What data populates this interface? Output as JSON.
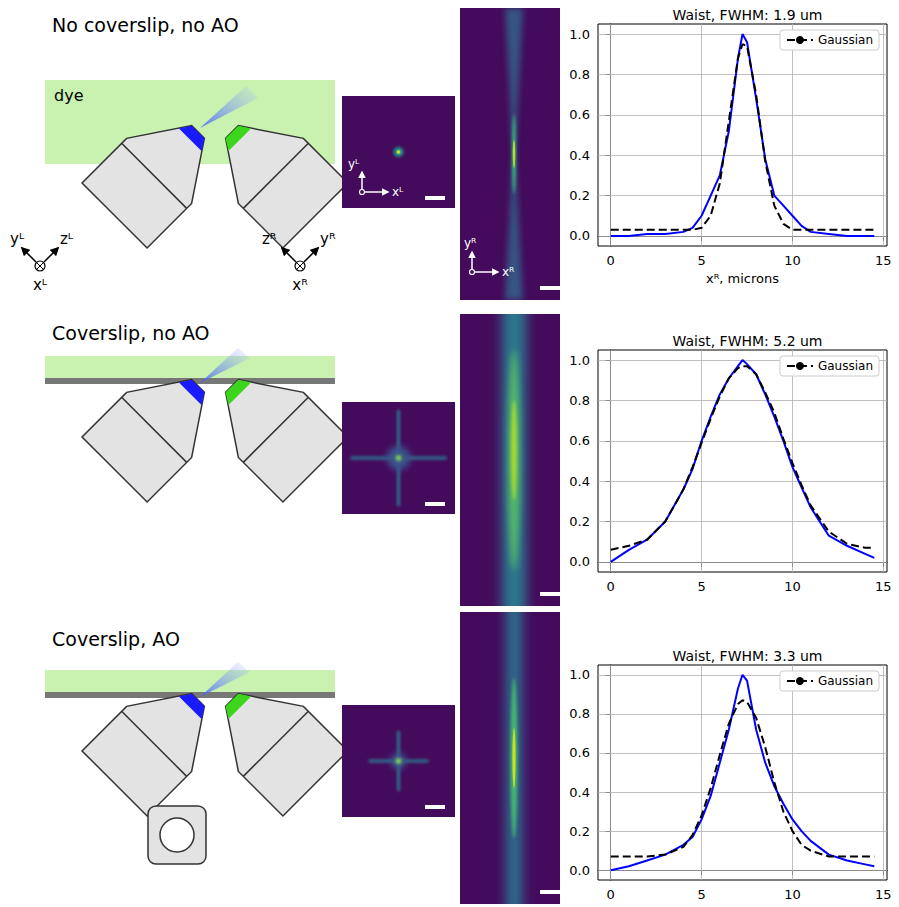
{
  "chart_data": [
    {
      "type": "line",
      "title": "Waist, FWHM: 1.9 um",
      "xlabel": "xᴿ, microns",
      "x": [
        0,
        1,
        2,
        3,
        4,
        4.5,
        5,
        5.5,
        6,
        6.5,
        7,
        7.25,
        7.5,
        8,
        8.5,
        9,
        9.5,
        10,
        10.5,
        11,
        12,
        13,
        14,
        14.5
      ],
      "series": [
        {
          "color": "#0000ff",
          "line_style": "solid",
          "values": [
            0.0,
            0.0,
            0.01,
            0.01,
            0.02,
            0.04,
            0.1,
            0.2,
            0.3,
            0.52,
            0.88,
            1.0,
            0.96,
            0.68,
            0.38,
            0.2,
            0.15,
            0.1,
            0.05,
            0.02,
            0.01,
            0.0,
            0.0,
            0.0
          ]
        },
        {
          "name": "Gaussian",
          "color": "#000000",
          "line_style": "dashed",
          "values": [
            0.03,
            0.03,
            0.03,
            0.03,
            0.03,
            0.03,
            0.04,
            0.1,
            0.26,
            0.57,
            0.88,
            0.95,
            0.94,
            0.7,
            0.37,
            0.15,
            0.06,
            0.03,
            0.03,
            0.03,
            0.03,
            0.03,
            0.03,
            0.03
          ]
        }
      ],
      "xlim": [
        -0.7,
        15.2
      ],
      "ylim": [
        -0.05,
        1.05
      ],
      "xticks": [
        0,
        5,
        10,
        15
      ],
      "yticks": [
        {
          "value": 0,
          "label": "0.0"
        },
        0.2,
        0.4,
        0.6,
        0.8,
        {
          "value": 1,
          "label": "1.0"
        }
      ],
      "grid": true,
      "legend": "upper right"
    },
    {
      "type": "line",
      "title": "Waist, FWHM: 5.2 um",
      "x": [
        0,
        1,
        2,
        3,
        4,
        4.5,
        5,
        5.5,
        6,
        6.5,
        7,
        7.25,
        7.5,
        8,
        8.5,
        9,
        9.5,
        10,
        10.5,
        11,
        12,
        13,
        14,
        14.5
      ],
      "series": [
        {
          "color": "#0000ff",
          "line_style": "solid",
          "values": [
            0.0,
            0.06,
            0.11,
            0.2,
            0.36,
            0.46,
            0.6,
            0.72,
            0.83,
            0.91,
            0.97,
            1.0,
            0.98,
            0.93,
            0.83,
            0.72,
            0.6,
            0.47,
            0.37,
            0.27,
            0.13,
            0.08,
            0.04,
            0.02
          ]
        },
        {
          "name": "Gaussian",
          "color": "#000000",
          "line_style": "dashed",
          "values": [
            0.06,
            0.08,
            0.11,
            0.2,
            0.36,
            0.47,
            0.59,
            0.71,
            0.82,
            0.91,
            0.96,
            0.97,
            0.97,
            0.93,
            0.84,
            0.74,
            0.61,
            0.49,
            0.38,
            0.28,
            0.15,
            0.09,
            0.07,
            0.07
          ]
        }
      ],
      "xlim": [
        -0.7,
        15.2
      ],
      "ylim": [
        -0.05,
        1.05
      ],
      "xticks": [
        0,
        5,
        10,
        15
      ],
      "yticks": [
        {
          "value": 0,
          "label": "0.0"
        },
        0.2,
        0.4,
        0.6,
        0.8,
        {
          "value": 1,
          "label": "1.0"
        }
      ],
      "grid": true,
      "legend": "upper right"
    },
    {
      "type": "line",
      "title": "Waist, FWHM: 3.3 um",
      "x": [
        0,
        1,
        2,
        3,
        4,
        4.5,
        5,
        5.5,
        6,
        6.5,
        7,
        7.25,
        7.5,
        8,
        8.5,
        9,
        9.5,
        10,
        10.5,
        11,
        12,
        13,
        14,
        14.5
      ],
      "series": [
        {
          "color": "#0000ff",
          "line_style": "solid",
          "values": [
            0.0,
            0.02,
            0.05,
            0.08,
            0.13,
            0.17,
            0.26,
            0.38,
            0.55,
            0.72,
            0.93,
            1.0,
            0.97,
            0.72,
            0.55,
            0.43,
            0.34,
            0.26,
            0.2,
            0.15,
            0.08,
            0.05,
            0.03,
            0.02
          ]
        },
        {
          "name": "Gaussian",
          "color": "#000000",
          "line_style": "dashed",
          "values": [
            0.07,
            0.07,
            0.07,
            0.08,
            0.12,
            0.18,
            0.28,
            0.42,
            0.59,
            0.75,
            0.85,
            0.87,
            0.86,
            0.78,
            0.63,
            0.45,
            0.3,
            0.2,
            0.13,
            0.1,
            0.07,
            0.07,
            0.07,
            0.07
          ]
        }
      ],
      "xlim": [
        -0.7,
        15.2
      ],
      "ylim": [
        -0.05,
        1.05
      ],
      "xticks": [
        0,
        5,
        10,
        15
      ],
      "yticks": [
        {
          "value": 0,
          "label": "0.0"
        },
        0.2,
        0.4,
        0.6,
        0.8,
        {
          "value": 1,
          "label": "1.0"
        }
      ],
      "grid": true,
      "legend": "upper right"
    }
  ],
  "panels": [
    {
      "title": "No coverslip, no AO",
      "medium": "dye",
      "left_axes": {
        "y": "yᴸ",
        "z": "zᴸ",
        "x": "xᴸ"
      },
      "right_axes": {
        "z": "zᴿ",
        "y": "yᴿ",
        "x": "xᴿ"
      },
      "image_axes": {
        "small": {
          "y": "yᴸ",
          "x": "xᴸ"
        },
        "tall": {
          "y": "yᴿ",
          "x": "xᴿ"
        }
      }
    },
    {
      "title": "Coverslip, no AO"
    },
    {
      "title": "Coverslip, AO"
    }
  ]
}
